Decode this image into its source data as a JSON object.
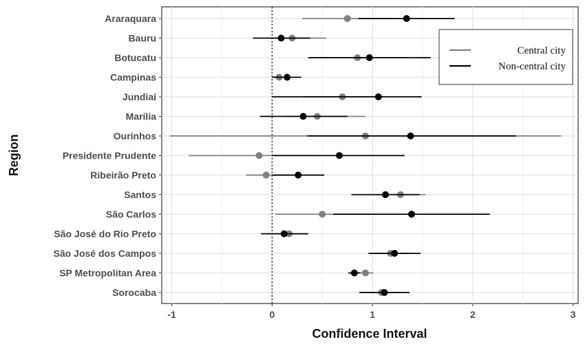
{
  "chart_data": {
    "type": "forest",
    "xlabel": "Confidence Interval",
    "ylabel": "Region",
    "xlim": [
      -1.1,
      3.05
    ],
    "xticks": [
      -1,
      0,
      1,
      2,
      3
    ],
    "xtick_labels": [
      "-1",
      "0",
      "1",
      "2",
      "3"
    ],
    "reference_line": 0,
    "grid": true,
    "legend_position": "top-right",
    "categories": [
      "Araraquara",
      "Bauru",
      "Botucatu",
      "Campinas",
      "Jundiaí",
      "Marília",
      "Ourinhos",
      "Presidente Prudente",
      "Ribeirão Preto",
      "Santos",
      "São Carlos",
      "São José do Rio Preto",
      "São José dos Campos",
      "SP Metropolitan Area",
      "Sorocaba"
    ],
    "series": [
      {
        "name": "Central city",
        "color": "#808080",
        "estimate": [
          0.75,
          0.2,
          0.85,
          0.07,
          0.7,
          0.45,
          0.93,
          -0.13,
          -0.06,
          1.28,
          0.5,
          0.17,
          1.18,
          0.93,
          1.09
        ],
        "lower": [
          0.3,
          0.02,
          0.36,
          0.0,
          0.3,
          0.13,
          -1.02,
          -0.83,
          -0.26,
          1.05,
          0.03,
          0.03,
          1.0,
          0.84,
          0.9
        ],
        "upper": [
          1.22,
          0.54,
          1.34,
          0.15,
          1.07,
          0.93,
          2.88,
          0.45,
          0.18,
          1.53,
          0.98,
          0.33,
          1.38,
          1.01,
          1.28
        ]
      },
      {
        "name": "Non-central city",
        "color": "#000000",
        "estimate": [
          1.34,
          0.09,
          0.97,
          0.15,
          1.06,
          0.31,
          1.38,
          0.67,
          0.26,
          1.13,
          1.39,
          0.12,
          1.22,
          0.82,
          1.12
        ],
        "lower": [
          0.86,
          -0.19,
          0.36,
          0.0,
          0.0,
          -0.12,
          0.35,
          0.0,
          0.0,
          0.79,
          0.61,
          -0.11,
          0.96,
          0.76,
          0.87
        ],
        "upper": [
          1.82,
          0.38,
          1.58,
          0.29,
          1.49,
          0.75,
          2.43,
          1.32,
          0.52,
          1.47,
          2.17,
          0.36,
          1.48,
          0.88,
          1.37
        ]
      }
    ]
  }
}
